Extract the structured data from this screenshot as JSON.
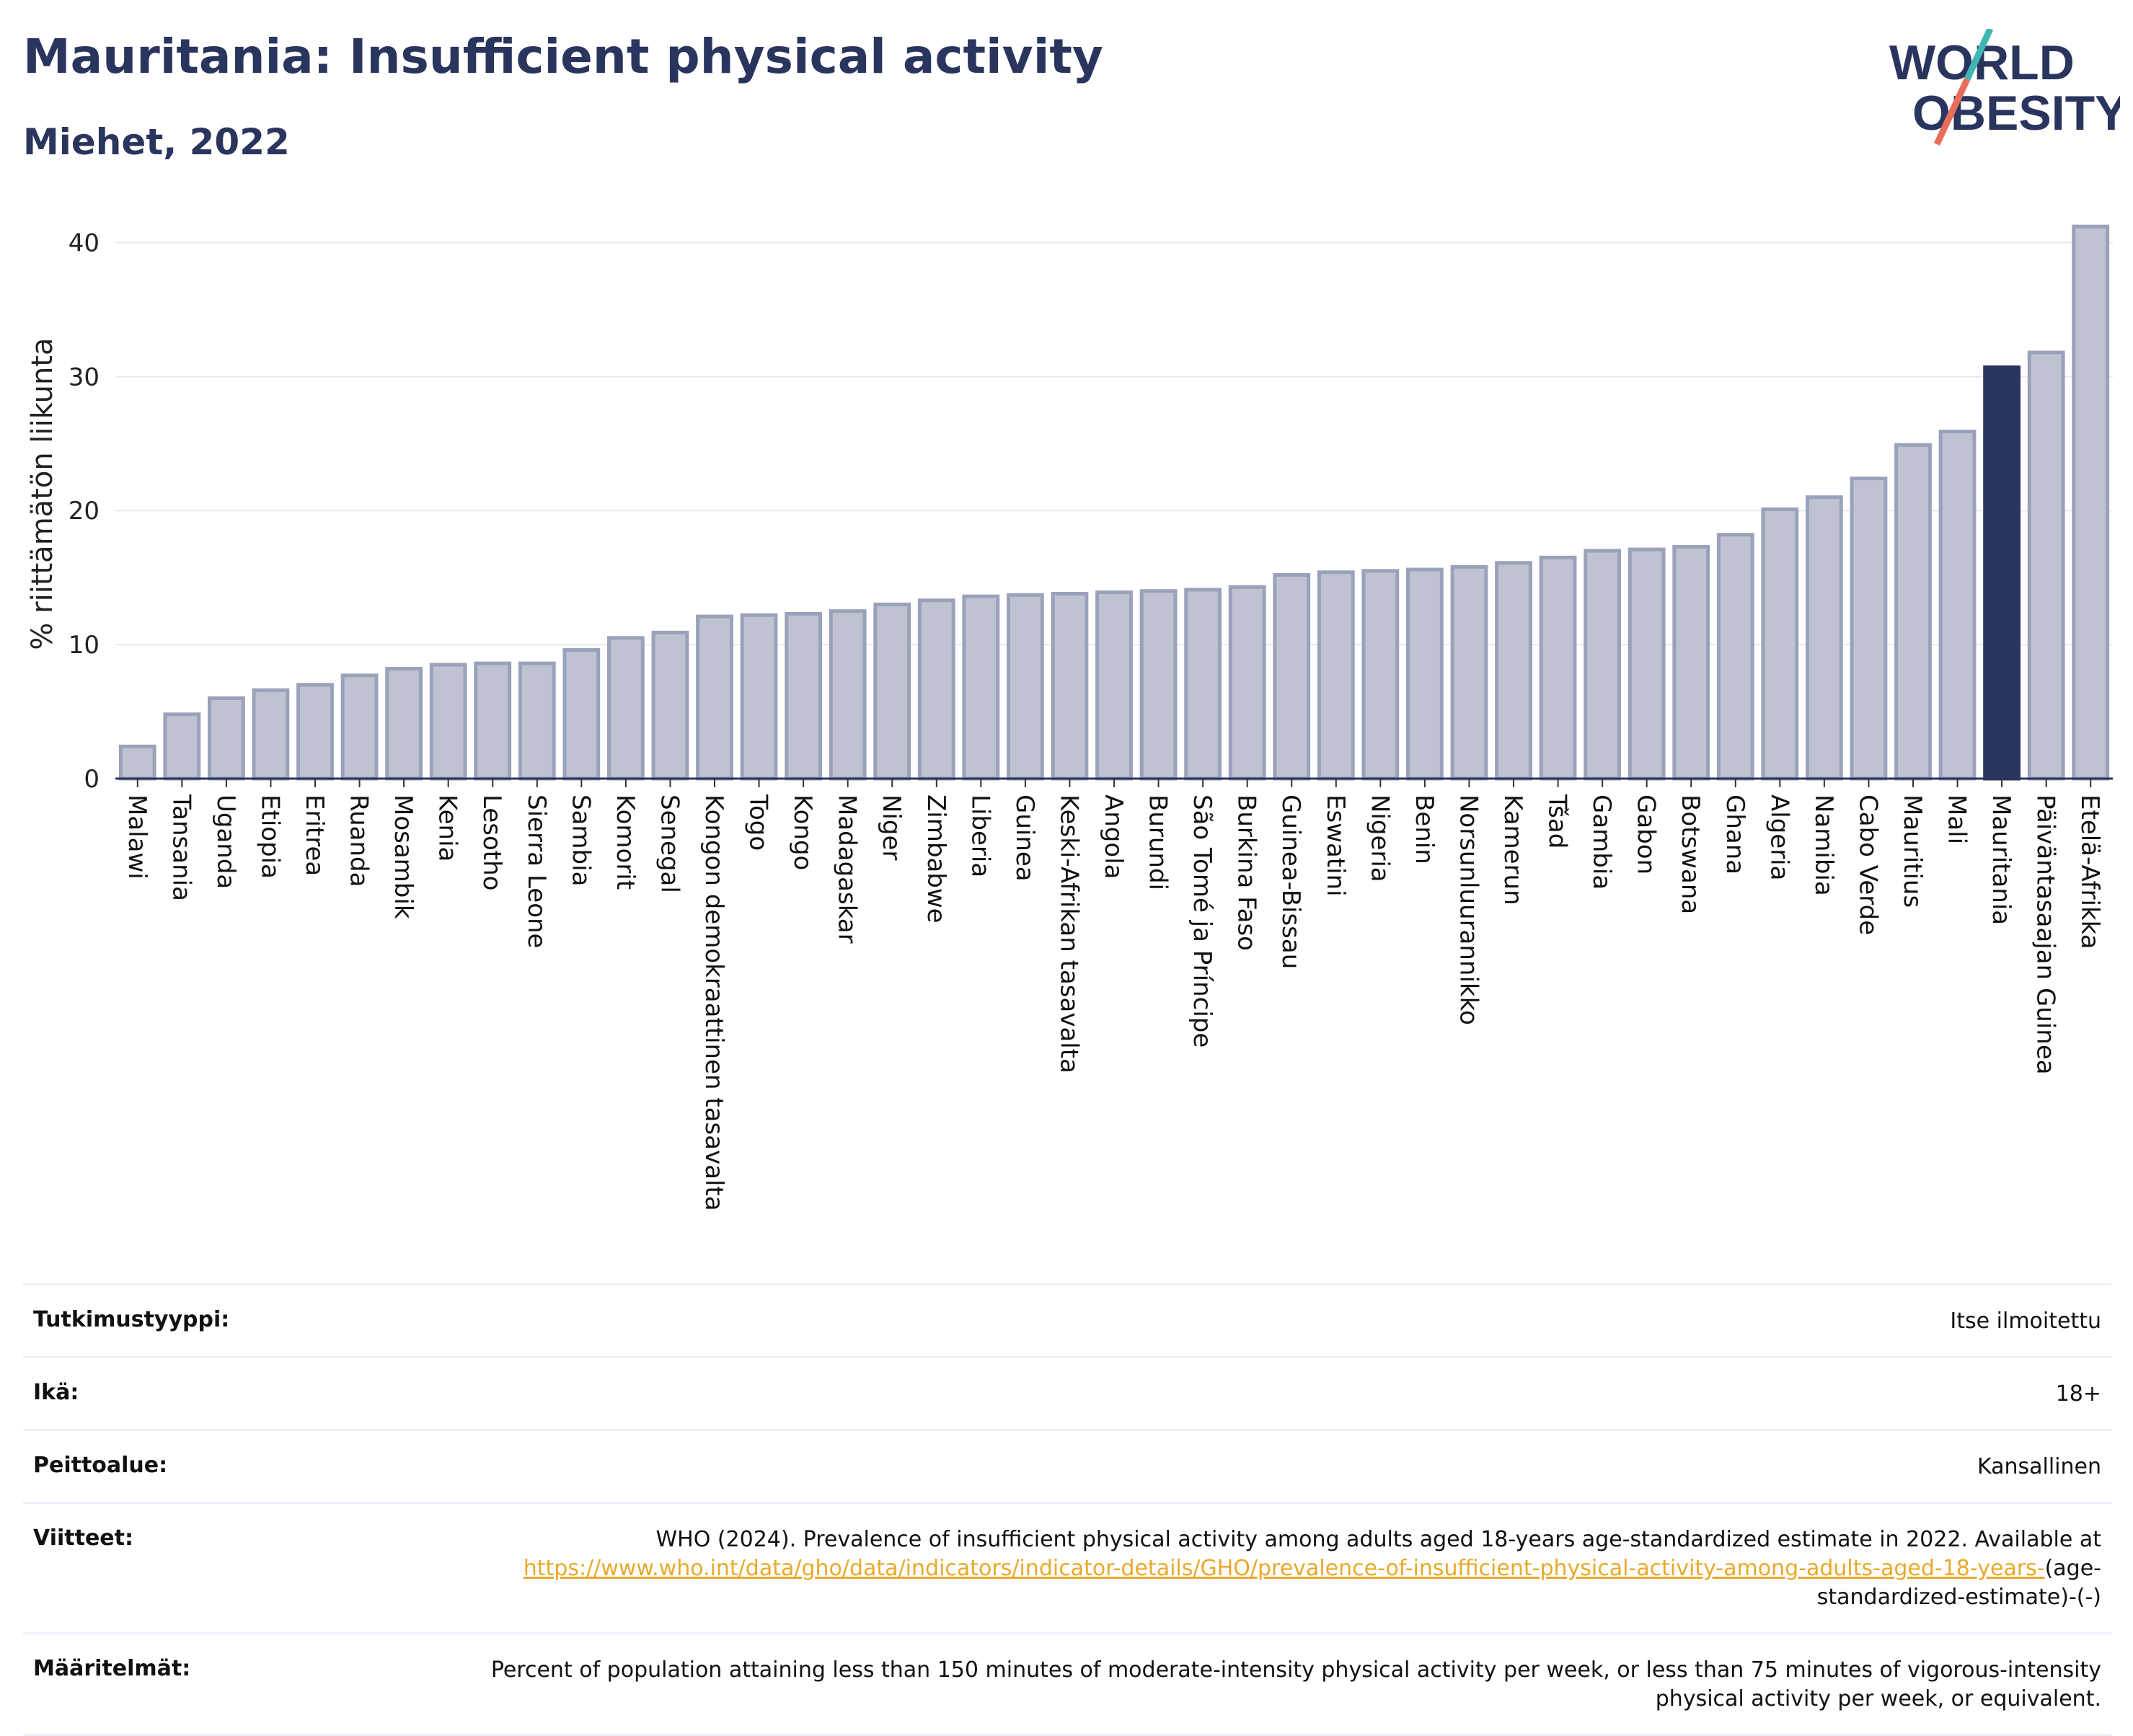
{
  "header": {
    "title": "Mauritania: Insufficient physical activity",
    "subtitle": "Miehet, 2022"
  },
  "logo": {
    "line1": "WORLD",
    "line2": "OBESITY"
  },
  "colors": {
    "highlight": "#2a355e",
    "bar_fill": "#bfc3d1",
    "bar_stroke": "#9aa1ba",
    "title": "#2a355e",
    "link": "#e8a92a",
    "logo_teal": "#3fb6b2",
    "logo_coral": "#e86e5a"
  },
  "chart_data": {
    "type": "bar",
    "ylabel": "% riittämätön liikunta",
    "xlabel": "",
    "ylim": [
      0,
      42.5
    ],
    "yticks": [
      0,
      10,
      20,
      30,
      40
    ],
    "grid": true,
    "highlight": "Mauritania",
    "categories": [
      "Malawi",
      "Tansania",
      "Uganda",
      "Etiopia",
      "Eritrea",
      "Ruanda",
      "Mosambik",
      "Kenia",
      "Lesotho",
      "Sierra Leone",
      "Sambia",
      "Komorit",
      "Senegal",
      "Kongon demokraattinen tasavalta",
      "Togo",
      "Kongo",
      "Madagaskar",
      "Niger",
      "Zimbabwe",
      "Liberia",
      "Guinea",
      "Keski-Afrikan tasavalta",
      "Angola",
      "Burundi",
      "São Tomé ja Príncipe",
      "Burkina Faso",
      "Guinea-Bissau",
      "Eswatini",
      "Nigeria",
      "Benin",
      "Norsunluurannikko",
      "Kamerun",
      "Tšad",
      "Gambia",
      "Gabon",
      "Botswana",
      "Ghana",
      "Algeria",
      "Namibia",
      "Cabo Verde",
      "Mauritius",
      "Mali",
      "Mauritania",
      "Päiväntasaajan Guinea",
      "Etelä-Afrikka"
    ],
    "values": [
      2.4,
      4.8,
      6.0,
      6.6,
      7.0,
      7.7,
      8.2,
      8.5,
      8.6,
      8.6,
      9.6,
      10.5,
      10.9,
      12.1,
      12.2,
      12.3,
      12.5,
      13.0,
      13.3,
      13.6,
      13.7,
      13.8,
      13.9,
      14.0,
      14.1,
      14.3,
      15.2,
      15.4,
      15.5,
      15.6,
      15.8,
      16.1,
      16.5,
      17.0,
      17.1,
      17.3,
      18.2,
      20.1,
      21.0,
      22.4,
      24.9,
      25.9,
      30.7,
      31.8,
      41.2
    ]
  },
  "meta": [
    {
      "label": "Tutkimustyyppi:",
      "value": "Itse ilmoitettu"
    },
    {
      "label": "Ikä:",
      "value": "18+"
    },
    {
      "label": "Peittoalue:",
      "value": "Kansallinen"
    },
    {
      "label": "Viitteet:",
      "value_text": "WHO (2024). Prevalence of insufficient physical activity among adults aged 18-years age-standardized estimate in 2022. Available at",
      "value_link": "https://www.who.int/data/gho/data/indicators/indicator-details/GHO/prevalence-of-insufficient-physical-activity-among-adults-aged-18-years-",
      "value_tail": "(age-standardized-estimate)-(-)"
    },
    {
      "label": "Määritelmät:",
      "value": "Percent of population attaining less than 150 minutes of moderate-intensity physical activity per week, or less than 75 minutes of vigorous-intensity physical activity per week, or equivalent."
    }
  ]
}
